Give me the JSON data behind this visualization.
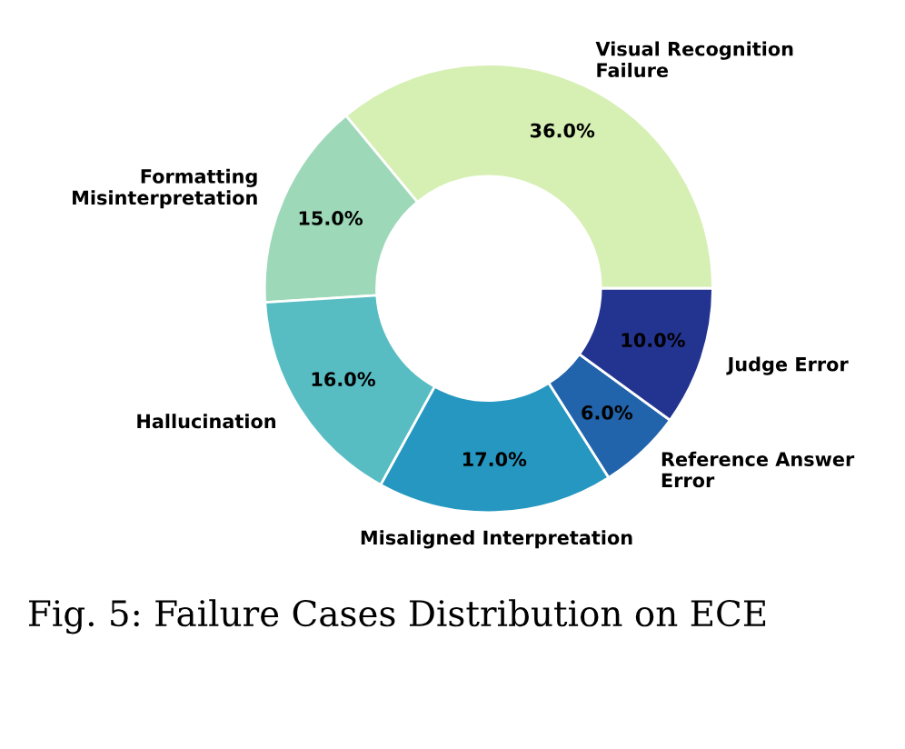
{
  "chart_data": {
    "type": "donut",
    "title": "Fig. 5: Failure Cases Distribution on ECE",
    "categories": [
      "Visual Recognition\nFailure",
      "Formatting\nMisinterpretation",
      "Hallucination",
      "Misaligned Interpretation",
      "Reference Answer\nError",
      "Judge Error"
    ],
    "values": [
      36.0,
      15.0,
      16.0,
      17.0,
      6.0,
      10.0
    ],
    "value_labels": [
      "36.0%",
      "15.0%",
      "16.0%",
      "17.0%",
      "6.0%",
      "10.0%"
    ],
    "colors": [
      "#d6efb3",
      "#9dd8b8",
      "#58bdc3",
      "#2597c0",
      "#2164ab",
      "#233390"
    ],
    "legend": false
  }
}
